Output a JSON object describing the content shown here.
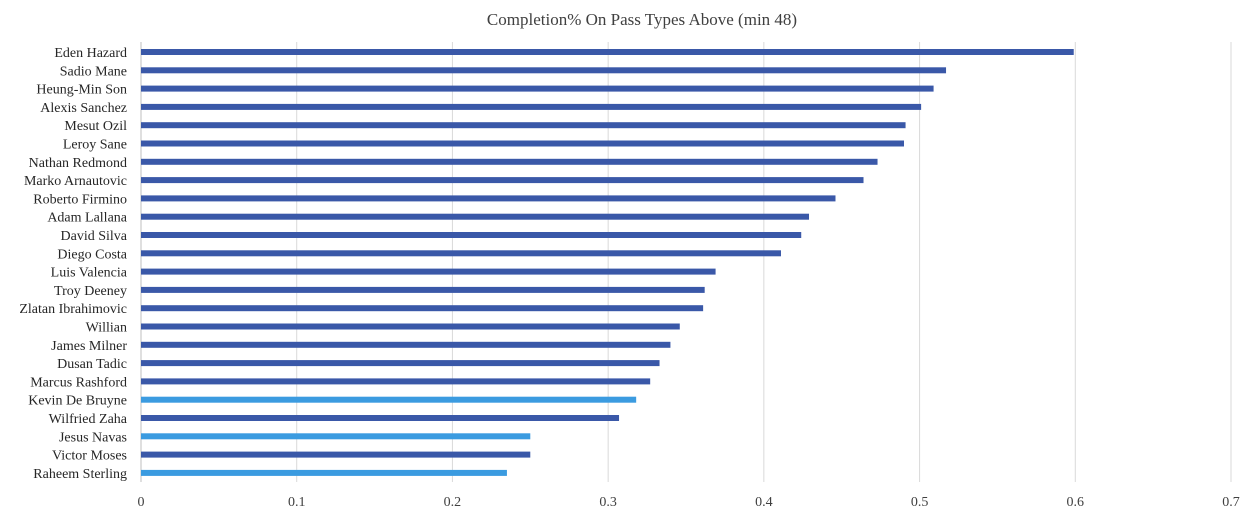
{
  "chart_data": {
    "type": "bar",
    "orientation": "horizontal",
    "title": "Completion% On Pass Types Above (min 48)",
    "xlabel": "",
    "ylabel": "",
    "xlim": [
      0,
      0.7
    ],
    "ticks": [
      0,
      0.1,
      0.2,
      0.3,
      0.4,
      0.5,
      0.6,
      0.7
    ],
    "tick_labels": [
      "0",
      "0.1",
      "0.2",
      "0.3",
      "0.4",
      "0.5",
      "0.6",
      "0.7"
    ],
    "grid": true,
    "legend": "none",
    "colors": {
      "default": "#3a58a8",
      "highlight": "#3b9be0"
    },
    "categories": [
      "Eden Hazard",
      "Sadio Mane",
      "Heung-Min Son",
      "Alexis Sanchez",
      "Mesut Ozil",
      "Leroy Sane",
      "Nathan Redmond",
      "Marko Arnautovic",
      "Roberto Firmino",
      "Adam Lallana",
      "David Silva",
      "Diego Costa",
      "Luis Valencia",
      "Troy Deeney",
      "Zlatan Ibrahimovic",
      "Willian",
      "James Milner",
      "Dusan Tadic",
      "Marcus Rashford",
      "Kevin De Bruyne",
      "Wilfried Zaha",
      "Jesus Navas",
      "Victor Moses",
      "Raheem Sterling"
    ],
    "values": [
      0.599,
      0.517,
      0.509,
      0.501,
      0.491,
      0.49,
      0.473,
      0.464,
      0.446,
      0.429,
      0.424,
      0.411,
      0.369,
      0.362,
      0.361,
      0.346,
      0.34,
      0.333,
      0.327,
      0.318,
      0.307,
      0.25,
      0.25,
      0.235
    ],
    "highlighted": [
      "Kevin De Bruyne",
      "Jesus Navas",
      "Raheem Sterling"
    ]
  }
}
